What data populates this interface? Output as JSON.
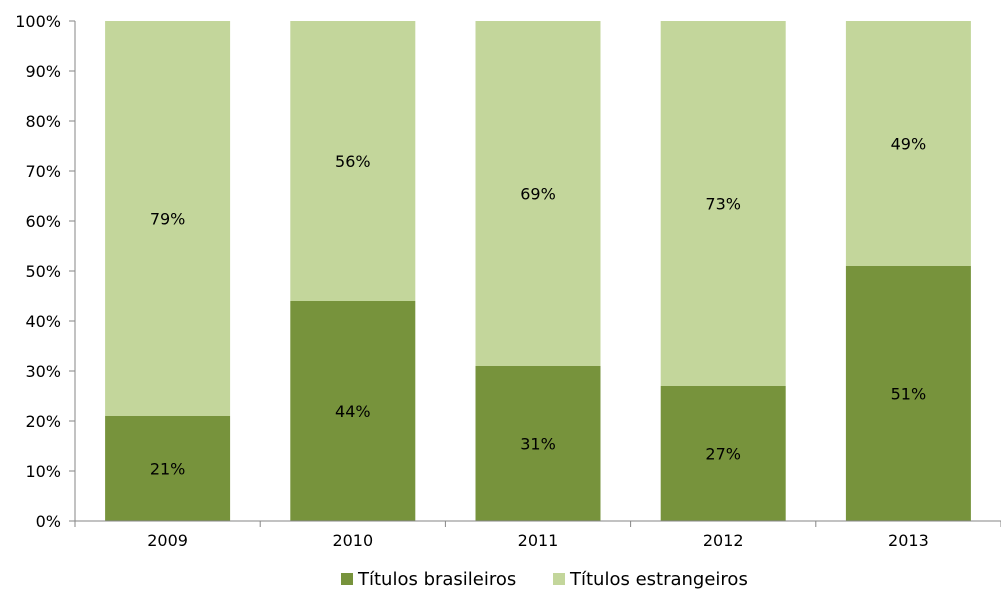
{
  "chart_data": {
    "type": "bar",
    "stacked": true,
    "normalized_percent": true,
    "categories": [
      "2009",
      "2010",
      "2011",
      "2012",
      "2013"
    ],
    "series": [
      {
        "name": "Títulos brasileiros",
        "values": [
          21,
          44,
          31,
          27,
          51
        ],
        "labels": [
          "21%",
          "44%",
          "31%",
          "27%",
          "51%"
        ],
        "color": "#77933c"
      },
      {
        "name": "Títulos estrangeiros",
        "values": [
          79,
          56,
          69,
          73,
          49
        ],
        "labels": [
          "79%",
          "56%",
          "69%",
          "73%",
          "49%"
        ],
        "color": "#c3d69b"
      }
    ],
    "y_ticks": [
      "0%",
      "10%",
      "20%",
      "30%",
      "40%",
      "50%",
      "60%",
      "70%",
      "80%",
      "90%",
      "100%"
    ],
    "ylim": [
      0,
      100
    ],
    "legend_position": "bottom",
    "grid": false
  }
}
